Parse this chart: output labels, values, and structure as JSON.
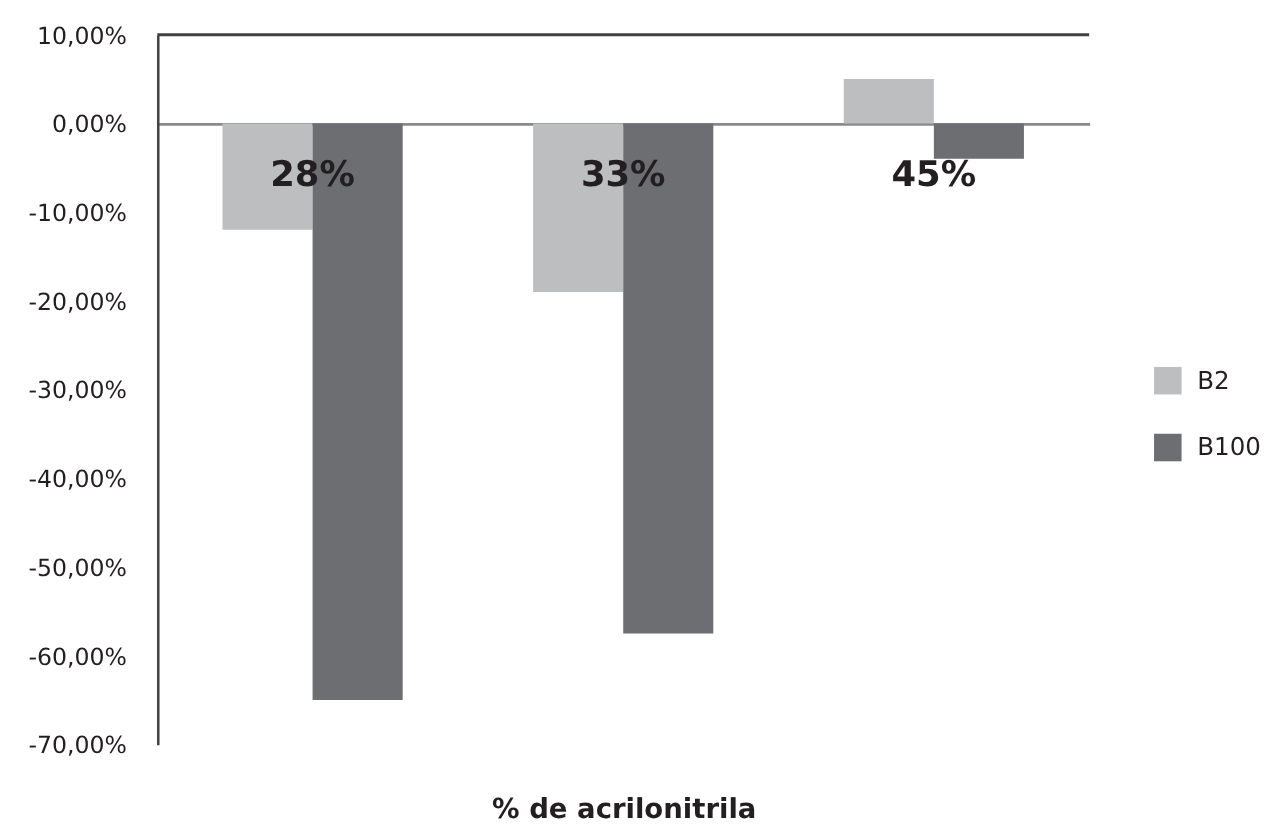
{
  "chart_data": {
    "type": "bar",
    "xlabel": "% de acrilonitrila",
    "categories": [
      "28%",
      "33%",
      "45%"
    ],
    "series": [
      {
        "name": "B2",
        "color": "#bcbec0",
        "values": [
          -12,
          -19,
          5
        ]
      },
      {
        "name": "B100",
        "color": "#6d6e71",
        "values": [
          -65,
          -57.5,
          -4
        ]
      }
    ],
    "ylim": [
      -70,
      10
    ],
    "yticks": [
      {
        "value": 10,
        "label": "10,00%"
      },
      {
        "value": 0,
        "label": "0,00%"
      },
      {
        "value": -10,
        "label": "-10,00%"
      },
      {
        "value": -20,
        "label": "-20,00%"
      },
      {
        "value": -30,
        "label": "-30,00%"
      },
      {
        "value": -40,
        "label": "-40,00%"
      },
      {
        "value": -50,
        "label": "-50,00%"
      },
      {
        "value": -60,
        "label": "-60,00%"
      },
      {
        "value": -70,
        "label": "-70,00%"
      }
    ],
    "grid": false,
    "legend": "right",
    "ref_lines": [
      {
        "axis": "y",
        "value": 10,
        "color": "#404040"
      }
    ]
  }
}
